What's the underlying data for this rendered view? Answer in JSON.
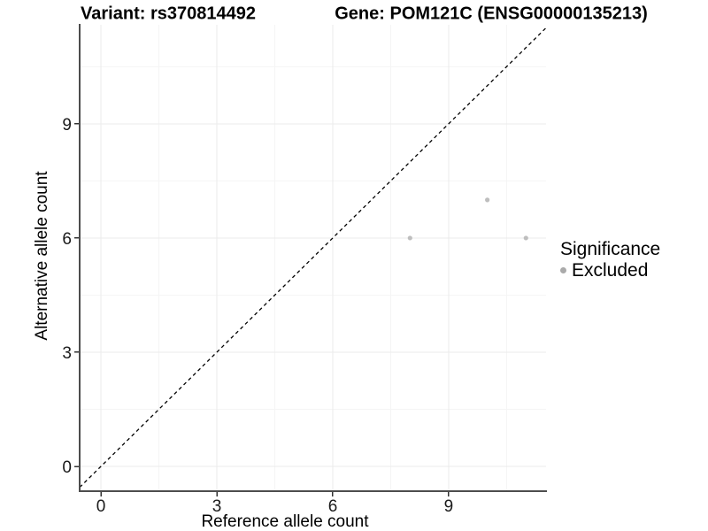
{
  "chart_data": {
    "type": "scatter",
    "title_left": "Variant: rs370814492",
    "title_right": "Gene: POM121C (ENSG00000135213)",
    "xlabel": "Reference allele count",
    "ylabel": "Alternative allele count",
    "xlim": [
      -0.55,
      11.52
    ],
    "ylim": [
      -0.65,
      11.6
    ],
    "x_ticks": [
      0,
      3,
      6,
      9
    ],
    "y_ticks": [
      0,
      3,
      6,
      9
    ],
    "x_minor_gridlines": [
      1.5,
      4.5,
      7.5,
      10.5
    ],
    "y_minor_gridlines": [
      1.5,
      4.5,
      7.5,
      10.5
    ],
    "grid": true,
    "identity_line": {
      "show": true,
      "style": "dashed",
      "color": "#000000"
    },
    "series": [
      {
        "name": "Excluded",
        "color": "#bebebe",
        "points": [
          [
            8,
            6
          ],
          [
            10,
            7
          ],
          [
            11,
            6
          ]
        ]
      }
    ],
    "legend": {
      "title": "Significance",
      "position": "right",
      "entries": [
        {
          "label": "Excluded",
          "color": "#aaaaaa"
        }
      ]
    }
  },
  "colors": {
    "background": "#ffffff",
    "grid_major": "#ebebeb",
    "grid_minor": "#f5f5f5",
    "axis_line": "#4d4d4d",
    "tick_mark": "#333333",
    "tick_label": "#1a1a1a",
    "point": "#bebebe",
    "identity_line": "#000000"
  }
}
